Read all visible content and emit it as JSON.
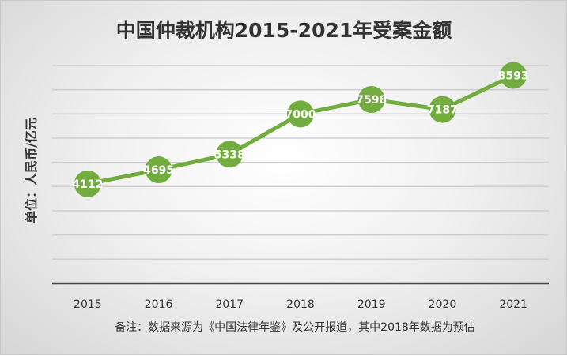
{
  "chart_data": {
    "type": "line",
    "title": "中国仲裁机构2015-2021年受案金额",
    "ylabel": "单位：人民币/亿元",
    "xlabel": "",
    "categories": [
      "2015",
      "2016",
      "2017",
      "2018",
      "2019",
      "2020",
      "2021"
    ],
    "series": [
      {
        "values": [
          4112,
          4695,
          5338,
          7000,
          7598,
          7187,
          8593
        ]
      }
    ],
    "ylim": [
      0,
      9000
    ],
    "grid": true,
    "legend": "none",
    "note": "备注：数据来源为《中国法律年鉴》及公开报道，其中2018年数据为预估",
    "colors": {
      "line": "#72ac3e",
      "marker": "#72ac3e",
      "label": "#ffffff"
    }
  }
}
